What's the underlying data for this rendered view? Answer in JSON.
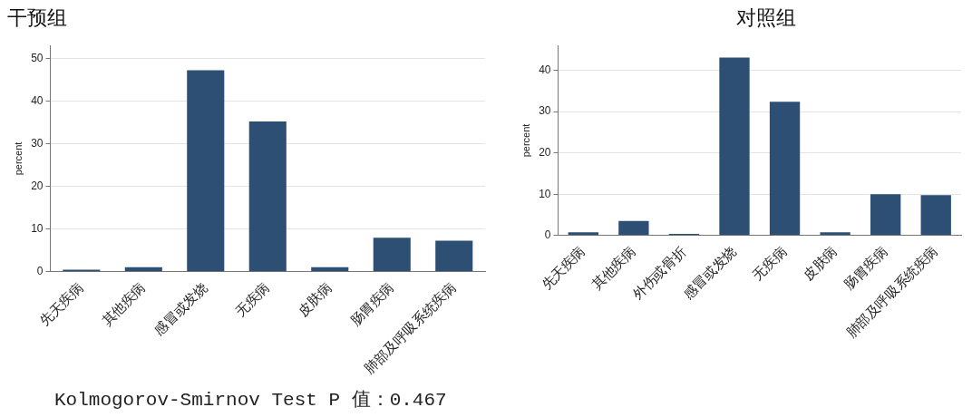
{
  "chart_data": [
    {
      "type": "bar",
      "title": "干预组",
      "ylabel": "percent",
      "categories": [
        "先天疾病",
        "其他疾病",
        "感冒或发烧",
        "无疾病",
        "皮肤病",
        "肠胃疾病",
        "肺部及呼吸系统疾病"
      ],
      "values": [
        0.5,
        1.1,
        47.2,
        35.2,
        1.1,
        8.0,
        7.3
      ],
      "color": "#2d4f73",
      "ylim": [
        0,
        53
      ],
      "yticks": [
        0,
        10,
        20,
        30,
        40,
        50
      ],
      "grid": "y",
      "annotations": [
        "Kolmogorov-Smirnov Test P 值：0.467"
      ]
    },
    {
      "type": "bar",
      "title": "对照组",
      "ylabel": "percent",
      "categories": [
        "先天疾病",
        "其他疾病",
        "外伤或骨折",
        "感冒或发烧",
        "无疾病",
        "皮肤病",
        "肠胃疾病",
        "肺部及呼吸系统疾病"
      ],
      "values": [
        0.8,
        3.5,
        0.4,
        43.1,
        32.4,
        0.8,
        10.0,
        9.8
      ],
      "color": "#2d4f73",
      "ylim": [
        0,
        46
      ],
      "yticks": [
        0,
        10,
        20,
        30,
        40
      ],
      "grid": "y"
    }
  ]
}
